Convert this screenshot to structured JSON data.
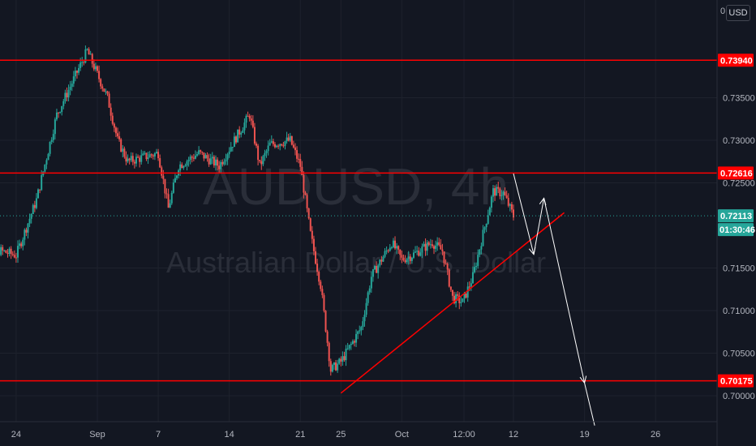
{
  "currency": "USD",
  "axis_top_label": "0",
  "watermark": {
    "line1": "AUDUSD, 4h",
    "line2": "Australian Dollar / U.S. Dollar"
  },
  "countdown": "01:30:46",
  "colors": {
    "up": "#26a69a",
    "down": "#ef5350",
    "level": "#ff0000",
    "current": "#26a69a",
    "arrow": "#ffffff",
    "background": "#131722"
  },
  "chart_data": {
    "type": "candlestick",
    "symbol": "AUDUSD",
    "timeframe": "4h",
    "y_ticks": [
      "0.73500",
      "0.73000",
      "0.72500",
      "0.71500",
      "0.71000",
      "0.70500",
      "0.70000"
    ],
    "x_ticks": [
      "24",
      "Sep",
      "7",
      "14",
      "21",
      "25",
      "Oct",
      "12:00",
      "12",
      "19",
      "26"
    ],
    "ylim": [
      0.6965,
      0.7432
    ],
    "horizontal_levels": [
      {
        "label": "0.73940",
        "value": 0.7394
      },
      {
        "label": "0.72616",
        "value": 0.72616
      },
      {
        "label": "0.70175",
        "value": 0.70175
      }
    ],
    "current_price": {
      "label": "0.72113",
      "value": 0.72113
    },
    "trendline": {
      "from": {
        "date": "Sep 25",
        "price": 0.7003
      },
      "to": {
        "date": "Oct 17",
        "price": 0.7215
      }
    },
    "projection_path": [
      {
        "date": "Oct 12",
        "price": 0.7261
      },
      {
        "date": "Oct 14",
        "price": 0.7166
      },
      {
        "date": "Oct 15",
        "price": 0.7232
      },
      {
        "date": "Oct 19",
        "price": 0.7015
      },
      {
        "date": "Oct 20",
        "price": 0.6965
      }
    ],
    "price_path": [
      {
        "date": "Aug 20",
        "price": 0.7178
      },
      {
        "date": "Aug 24",
        "price": 0.7165
      },
      {
        "date": "Aug 26",
        "price": 0.723
      },
      {
        "date": "Aug 28",
        "price": 0.733
      },
      {
        "date": "Aug 31",
        "price": 0.7405
      },
      {
        "date": "Sep 2",
        "price": 0.735
      },
      {
        "date": "Sep 3",
        "price": 0.73
      },
      {
        "date": "Sep 4",
        "price": 0.7275
      },
      {
        "date": "Sep 7",
        "price": 0.7285
      },
      {
        "date": "Sep 8",
        "price": 0.722
      },
      {
        "date": "Sep 9",
        "price": 0.727
      },
      {
        "date": "Sep 11",
        "price": 0.7285
      },
      {
        "date": "Sep 13",
        "price": 0.727
      },
      {
        "date": "Sep 15",
        "price": 0.731
      },
      {
        "date": "Sep 16",
        "price": 0.733
      },
      {
        "date": "Sep 17",
        "price": 0.727
      },
      {
        "date": "Sep 18",
        "price": 0.7295
      },
      {
        "date": "Sep 20",
        "price": 0.73
      },
      {
        "date": "Sep 21",
        "price": 0.727
      },
      {
        "date": "Sep 22",
        "price": 0.719
      },
      {
        "date": "Sep 23",
        "price": 0.713
      },
      {
        "date": "Sep 24",
        "price": 0.703
      },
      {
        "date": "Sep 25",
        "price": 0.704
      },
      {
        "date": "Sep 27",
        "price": 0.708
      },
      {
        "date": "Sep 28",
        "price": 0.714
      },
      {
        "date": "Sep 30",
        "price": 0.718
      },
      {
        "date": "Oct 1",
        "price": 0.716
      },
      {
        "date": "Oct 2",
        "price": 0.7165
      },
      {
        "date": "Oct 4",
        "price": 0.718
      },
      {
        "date": "Oct 5",
        "price": 0.717
      },
      {
        "date": "Oct 6",
        "price": 0.7115
      },
      {
        "date": "Oct 7",
        "price": 0.711
      },
      {
        "date": "Oct 8",
        "price": 0.714
      },
      {
        "date": "Oct 9",
        "price": 0.719
      },
      {
        "date": "Oct 10",
        "price": 0.724
      },
      {
        "date": "Oct 11",
        "price": 0.7238
      },
      {
        "date": "Oct 12",
        "price": 0.7211
      }
    ]
  }
}
